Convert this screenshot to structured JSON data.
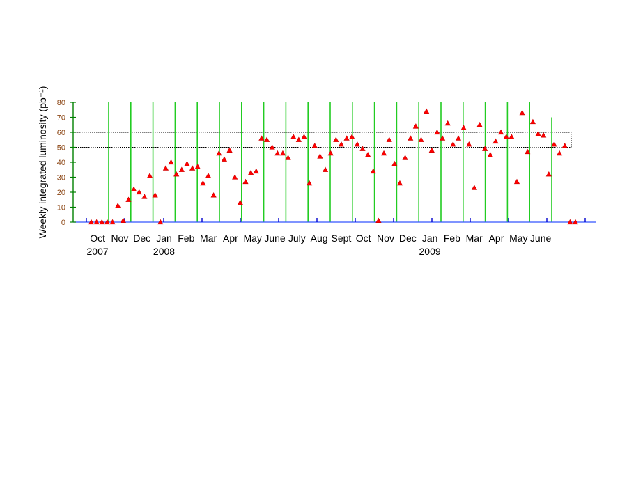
{
  "chart_data": {
    "type": "scatter",
    "title": "",
    "ylabel": "Weekly integrated luminosity (pb⁻¹)",
    "xlabel": "",
    "ylim": [
      0,
      80
    ],
    "y_ticks": [
      0,
      10,
      20,
      30,
      40,
      50,
      60,
      70,
      80
    ],
    "band": [
      50,
      60
    ],
    "month_labels": [
      "Oct",
      "Nov",
      "Dec",
      "Jan",
      "Feb",
      "Mar",
      "Apr",
      "May",
      "June",
      "July",
      "Aug",
      "Sept",
      "Oct",
      "Nov",
      "Dec",
      "Jan",
      "Feb",
      "Mar",
      "Apr",
      "May",
      "June"
    ],
    "year_labels": [
      {
        "text": "2007",
        "under_month": 0
      },
      {
        "text": "2008",
        "under_month": 3
      },
      {
        "text": "2009",
        "under_month": 15
      }
    ],
    "boundary_count": 21,
    "week_count": 92,
    "colors": {
      "axis": "#008000",
      "baseline": "#3355ff",
      "boundary": "#22cc22",
      "marker": "#ff0000",
      "tick_label": "#8b4513"
    },
    "series": [
      {
        "values": [
          0,
          0,
          0,
          0,
          0,
          11,
          1,
          15,
          22,
          20,
          17,
          31,
          18,
          0,
          36,
          40,
          32,
          35,
          39,
          36,
          37,
          26,
          31,
          18,
          46,
          42,
          48,
          30,
          13,
          27,
          33,
          34,
          56,
          55,
          50,
          46,
          46,
          43,
          57,
          55,
          57,
          26,
          51,
          44,
          35,
          46,
          55,
          52,
          56,
          57,
          52,
          49,
          45,
          34,
          1,
          46,
          55,
          39,
          26,
          43,
          56,
          64,
          55,
          74,
          48,
          60,
          56,
          66,
          52,
          56,
          63,
          52,
          23,
          65,
          49,
          45,
          54,
          60,
          57,
          57,
          27,
          73,
          47,
          67,
          59,
          58,
          32,
          52,
          46,
          51,
          0,
          0
        ]
      }
    ]
  }
}
